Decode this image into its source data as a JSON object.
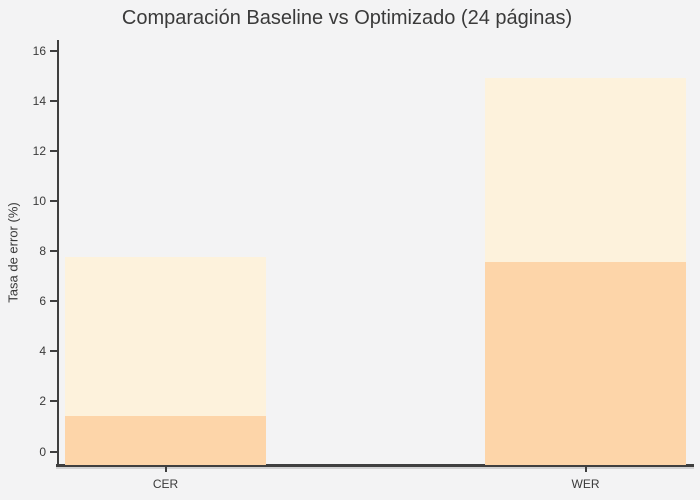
{
  "title": "Comparación Baseline vs Optimizado (24 páginas)",
  "colors": {
    "background": "#f3f3f4",
    "axis": "#3f3f3f",
    "text": "#3a3a3a",
    "baseline_bar": "#FDF2DC",
    "optimizado_bar": "#FDD5A9"
  },
  "chart_data": {
    "type": "bar",
    "title": "Comparación Baseline vs Optimizado (24 páginas)",
    "xlabel": "",
    "ylabel": "Tasa de error (%)",
    "categories": [
      "CER",
      "WER"
    ],
    "series": [
      {
        "name": "Baseline",
        "values": [
          7.75,
          14.9
        ],
        "color": "#FDF2DC"
      },
      {
        "name": "Optimizado",
        "values": [
          1.4,
          7.55
        ],
        "color": "#FDD5A9"
      }
    ],
    "ylim": [
      0,
      16
    ],
    "yticks": [
      0,
      2,
      4,
      6,
      8,
      10,
      12,
      14,
      16
    ],
    "grid": false,
    "legend": "none",
    "style_note": "bars of both series overlaid at same x position, Optimizado drawn in front of Baseline"
  }
}
